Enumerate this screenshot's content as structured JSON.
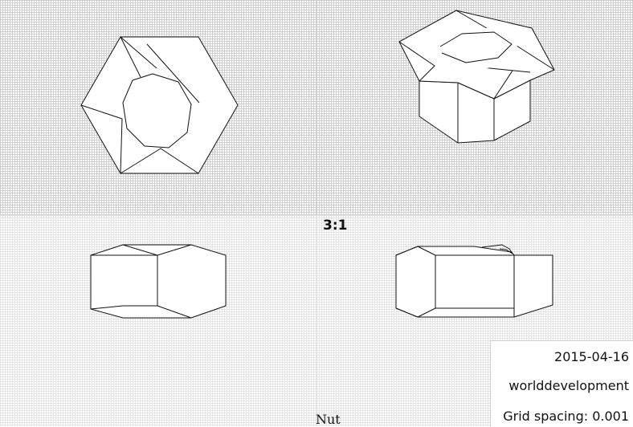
{
  "view": {
    "scale": "3:1",
    "part_name": "Nut"
  },
  "title_block": {
    "date": "2015-04-16",
    "author": "worlddevelopment",
    "grid_spacing": "Grid spacing: 0.001"
  },
  "colors": {
    "background": "#ffffff",
    "grid_dense": "#cfcfcf",
    "grid_fine": "#e4e4e4",
    "line": "#111111"
  }
}
